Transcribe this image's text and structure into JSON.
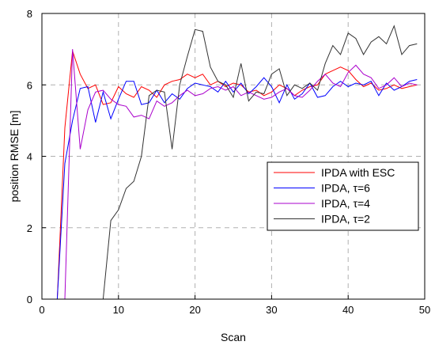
{
  "chart_data": {
    "type": "line",
    "xlabel": "Scan",
    "ylabel": "position RMSE [m]",
    "xlim": [
      0,
      50
    ],
    "ylim": [
      0,
      8
    ],
    "xticks": [
      "0",
      "10",
      "20",
      "30",
      "40",
      "50"
    ],
    "yticks": [
      "0",
      "2",
      "4",
      "6",
      "8"
    ],
    "grid": true,
    "legend_position": "middle-right",
    "series": [
      {
        "name": "IPDA with ESC",
        "color": "#ff0000",
        "x": [
          0,
          1,
          2,
          3,
          4,
          5,
          6,
          7,
          8,
          9,
          10,
          11,
          12,
          13,
          14,
          15,
          16,
          17,
          18,
          19,
          20,
          21,
          22,
          23,
          24,
          25,
          26,
          27,
          28,
          29,
          30,
          31,
          32,
          33,
          34,
          35,
          36,
          37,
          38,
          39,
          40,
          41,
          42,
          43,
          44,
          45,
          46,
          47,
          48,
          49
        ],
        "y": [
          0,
          0,
          0,
          4.8,
          6.95,
          6.3,
          5.9,
          6.0,
          5.45,
          5.5,
          5.95,
          5.75,
          5.65,
          5.95,
          5.85,
          5.65,
          6.0,
          6.1,
          6.15,
          6.3,
          6.2,
          6.3,
          6.0,
          6.1,
          5.95,
          6.05,
          6.0,
          5.8,
          5.85,
          5.7,
          5.8,
          6.0,
          5.9,
          5.7,
          5.85,
          5.95,
          6.0,
          6.3,
          6.4,
          6.5,
          6.4,
          6.15,
          5.95,
          6.05,
          5.85,
          5.9,
          6.0,
          5.9,
          5.95,
          6.0
        ]
      },
      {
        "name": "IPDA, τ=6",
        "color": "#0000ff",
        "x": [
          0,
          1,
          2,
          3,
          4,
          5,
          6,
          7,
          8,
          9,
          10,
          11,
          12,
          13,
          14,
          15,
          16,
          17,
          18,
          19,
          20,
          21,
          22,
          23,
          24,
          25,
          26,
          27,
          28,
          29,
          30,
          31,
          32,
          33,
          34,
          35,
          36,
          37,
          38,
          39,
          40,
          41,
          42,
          43,
          44,
          45,
          46,
          47,
          48,
          49
        ],
        "y": [
          0,
          0,
          0,
          3.8,
          5.0,
          5.9,
          5.95,
          4.95,
          5.8,
          5.05,
          5.6,
          6.1,
          6.1,
          5.45,
          5.5,
          5.85,
          5.5,
          5.75,
          5.6,
          5.9,
          6.05,
          6.0,
          5.95,
          5.8,
          6.1,
          5.8,
          6.05,
          5.75,
          5.95,
          6.2,
          5.95,
          5.5,
          6.0,
          5.6,
          5.75,
          6.05,
          5.65,
          5.7,
          5.95,
          6.1,
          5.95,
          6.05,
          6.0,
          6.1,
          5.7,
          6.05,
          5.85,
          5.95,
          6.1,
          6.15
        ]
      },
      {
        "name": "IPDA, τ=4",
        "color": "#aa00cc",
        "x": [
          0,
          1,
          2,
          3,
          4,
          5,
          6,
          7,
          8,
          9,
          10,
          11,
          12,
          13,
          14,
          15,
          16,
          17,
          18,
          19,
          20,
          21,
          22,
          23,
          24,
          25,
          26,
          27,
          28,
          29,
          30,
          31,
          32,
          33,
          34,
          35,
          36,
          37,
          38,
          39,
          40,
          41,
          42,
          43,
          44,
          45,
          46,
          47,
          48,
          49
        ],
        "y": [
          0,
          0,
          0,
          0,
          7.0,
          4.2,
          5.3,
          5.8,
          5.85,
          5.6,
          5.45,
          5.4,
          5.1,
          5.15,
          5.05,
          5.55,
          5.4,
          5.5,
          5.7,
          5.85,
          5.7,
          5.75,
          5.9,
          5.95,
          5.85,
          5.95,
          5.7,
          5.8,
          5.7,
          5.6,
          5.65,
          5.8,
          5.9,
          5.7,
          5.65,
          5.85,
          6.1,
          6.3,
          6.05,
          5.95,
          6.35,
          6.55,
          6.3,
          6.2,
          5.9,
          6.0,
          6.2,
          5.95,
          6.05,
          6.0
        ]
      },
      {
        "name": "IPDA, τ=2",
        "color": "#333333",
        "x": [
          0,
          1,
          2,
          3,
          4,
          5,
          6,
          7,
          8,
          9,
          10,
          11,
          12,
          13,
          14,
          15,
          16,
          17,
          18,
          19,
          20,
          21,
          22,
          23,
          24,
          25,
          26,
          27,
          28,
          29,
          30,
          31,
          32,
          33,
          34,
          35,
          36,
          37,
          38,
          39,
          40,
          41,
          42,
          43,
          44,
          45,
          46,
          47,
          48,
          49
        ],
        "y": [
          0,
          0,
          0,
          0,
          0,
          0,
          0,
          0,
          0,
          2.2,
          2.5,
          3.1,
          3.3,
          4.0,
          5.7,
          5.85,
          5.8,
          4.2,
          6.0,
          6.8,
          7.55,
          7.5,
          6.5,
          6.1,
          6.0,
          5.65,
          6.6,
          5.55,
          5.8,
          5.75,
          6.3,
          6.45,
          5.7,
          6.0,
          5.9,
          6.05,
          5.85,
          6.6,
          7.1,
          6.85,
          7.45,
          7.3,
          6.85,
          7.2,
          7.35,
          7.15,
          7.65,
          6.85,
          7.1,
          7.15
        ]
      }
    ]
  }
}
